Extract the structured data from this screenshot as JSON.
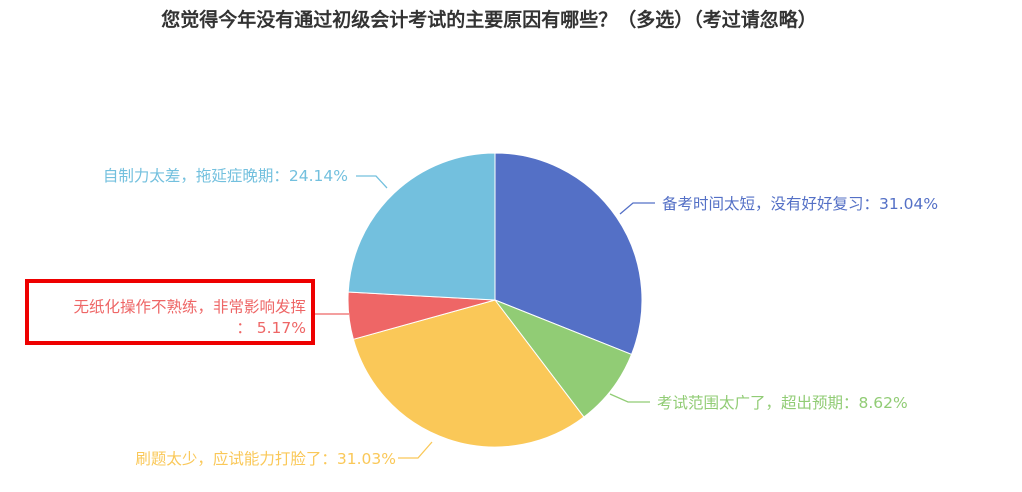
{
  "chart_data": {
    "type": "pie",
    "title": "您觉得今年没有通过初级会计考试的主要原因有哪些？（多选）（考过请忽略）",
    "slices": [
      {
        "label": "备考时间太短，没有好好复习",
        "value": 31.04,
        "value_text": "31.04%",
        "color": "#5470c6"
      },
      {
        "label": "考试范围太广了，超出预期",
        "value": 8.62,
        "value_text": "8.62%",
        "color": "#91cc75"
      },
      {
        "label": "刷题太少，应试能力打脸了",
        "value": 31.03,
        "value_text": "31.03%",
        "color": "#fac858"
      },
      {
        "label": "无纸化操作不熟练，非常影响发挥",
        "value": 5.17,
        "value_text": "5.17%",
        "color": "#ee6666"
      },
      {
        "label": "自制力太差，拖延症晚期",
        "value": 24.14,
        "value_text": "24.14%",
        "color": "#73c0de"
      }
    ],
    "highlighted_slice": "无纸化操作不熟练，非常影响发挥",
    "highlight_color": "#ee0000"
  }
}
